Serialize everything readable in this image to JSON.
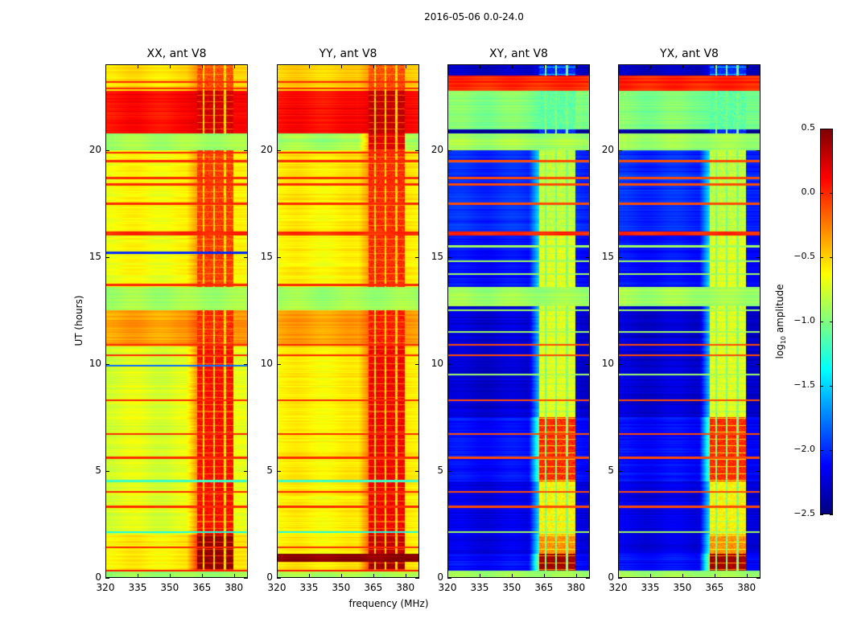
{
  "chart_data": {
    "type": "heatmap",
    "title": "2016-05-06 0.0-24.0",
    "xlabel": "frequency (MHz)",
    "ylabel": "UT (hours)",
    "xlim": [
      320,
      386.5
    ],
    "ylim": [
      0,
      24
    ],
    "xticks": [
      "320",
      "335",
      "350",
      "365",
      "380"
    ],
    "yticks": [
      "0",
      "5",
      "10",
      "15",
      "20"
    ],
    "colorbar": {
      "label": "log10 amplitude",
      "label_main": "log",
      "label_sub": "10",
      "label_rest": " amplitude",
      "range": [
        -2.5,
        0.5
      ],
      "ticks": [
        "0.5",
        "0.0",
        "−0.5",
        "−1.0",
        "−1.5",
        "−2.0",
        "−2.5"
      ],
      "colormap": "jet"
    },
    "rfi_range": [
      363,
      380
    ],
    "rfi_gaps": [
      366,
      371,
      376
    ],
    "panels": [
      {
        "title": "XX, ant V8",
        "gap": -0.5,
        "bands": [
          [
            0,
            0.3,
            -0.9,
            -0.9
          ],
          [
            0.3,
            2.0,
            -0.6,
            0.45
          ],
          [
            2.0,
            10.8,
            -0.72,
            0.1
          ],
          [
            10.8,
            12.5,
            -0.35,
            0.0
          ],
          [
            12.5,
            13.6,
            -0.9,
            -0.9
          ],
          [
            13.6,
            16.0,
            -0.65,
            -0.05
          ],
          [
            16.0,
            16.2,
            0.0,
            0.0
          ],
          [
            16.2,
            20.0,
            -0.62,
            -0.05
          ],
          [
            20.0,
            20.8,
            -0.9,
            -0.9
          ],
          [
            20.8,
            22.8,
            0.1,
            0.25
          ],
          [
            22.8,
            24,
            -0.55,
            -0.1
          ]
        ],
        "lines": [
          [
            0.3,
            0.05
          ],
          [
            1.4,
            0.0
          ],
          [
            2.1,
            -1.3
          ],
          [
            3.3,
            0.0
          ],
          [
            4.0,
            0.0
          ],
          [
            4.5,
            -1.2
          ],
          [
            5.6,
            0.0
          ],
          [
            6.7,
            0.0
          ],
          [
            8.3,
            0.0
          ],
          [
            9.9,
            -1.8
          ],
          [
            10.4,
            0.0
          ],
          [
            10.9,
            0.0
          ],
          [
            13.7,
            0.0
          ],
          [
            15.2,
            -2.0
          ],
          [
            17.5,
            0.0
          ],
          [
            18.4,
            0.0
          ],
          [
            18.7,
            0.0
          ],
          [
            19.5,
            0.0
          ],
          [
            19.9,
            0.0
          ],
          [
            22.9,
            0.0
          ],
          [
            23.2,
            0.0
          ]
        ]
      },
      {
        "title": "YY, ant V8",
        "gap": -0.5,
        "bands": [
          [
            0,
            0.3,
            -0.9,
            -0.9
          ],
          [
            0.3,
            0.7,
            -0.55,
            0.4
          ],
          [
            0.7,
            1.1,
            0.45,
            0.45
          ],
          [
            1.1,
            2.0,
            -0.6,
            0.3
          ],
          [
            2.0,
            10.8,
            -0.6,
            0.15
          ],
          [
            10.8,
            12.5,
            -0.35,
            0.05
          ],
          [
            12.5,
            13.6,
            -0.9,
            -0.9
          ],
          [
            13.6,
            16.0,
            -0.6,
            0.0
          ],
          [
            16.0,
            16.2,
            0.0,
            0.0
          ],
          [
            16.2,
            20.0,
            -0.58,
            0.0
          ],
          [
            20.0,
            20.8,
            -0.9,
            0.2
          ],
          [
            20.8,
            22.8,
            0.1,
            0.3
          ],
          [
            22.8,
            24,
            -0.5,
            -0.1
          ]
        ],
        "lines": [
          [
            0.3,
            0.05
          ],
          [
            1.4,
            0.0
          ],
          [
            2.1,
            -1.3
          ],
          [
            3.3,
            0.0
          ],
          [
            4.0,
            0.0
          ],
          [
            4.5,
            -1.2
          ],
          [
            5.6,
            0.0
          ],
          [
            6.7,
            0.0
          ],
          [
            8.3,
            0.0
          ],
          [
            10.4,
            0.0
          ],
          [
            10.9,
            0.0
          ],
          [
            13.7,
            0.0
          ],
          [
            17.5,
            0.0
          ],
          [
            18.4,
            0.0
          ],
          [
            18.7,
            0.0
          ],
          [
            19.5,
            0.0
          ],
          [
            19.9,
            0.0
          ],
          [
            22.9,
            0.0
          ],
          [
            23.2,
            0.0
          ]
        ]
      },
      {
        "title": "XY, ant V8",
        "gap": -1.0,
        "bands": [
          [
            0,
            0.3,
            -0.9,
            -0.9
          ],
          [
            0.3,
            1.1,
            -2.1,
            0.4
          ],
          [
            1.1,
            2.0,
            -2.2,
            -0.3
          ],
          [
            2.0,
            4.5,
            -2.2,
            -0.6
          ],
          [
            4.5,
            7.5,
            -2.1,
            0.0
          ],
          [
            7.5,
            12.7,
            -2.25,
            -0.7
          ],
          [
            12.7,
            13.6,
            -0.9,
            -0.9
          ],
          [
            13.6,
            16.0,
            -2.1,
            -0.7
          ],
          [
            16.0,
            16.2,
            0.0,
            0.0
          ],
          [
            16.2,
            20.0,
            -2.0,
            -0.8
          ],
          [
            20.0,
            20.3,
            -0.9,
            -0.9
          ],
          [
            20.3,
            20.8,
            -0.9,
            -0.9
          ],
          [
            20.8,
            21.0,
            -2.4,
            -2.0
          ],
          [
            21.0,
            22.8,
            -1.0,
            -1.1
          ],
          [
            22.8,
            23.5,
            0.0,
            0.0
          ],
          [
            23.5,
            24,
            -2.3,
            -2.0
          ]
        ],
        "lines": [
          [
            2.1,
            -0.9
          ],
          [
            3.3,
            -0.1
          ],
          [
            4.0,
            -0.1
          ],
          [
            5.6,
            -0.1
          ],
          [
            6.7,
            -0.1
          ],
          [
            8.3,
            -0.1
          ],
          [
            9.5,
            -0.9
          ],
          [
            10.4,
            -0.1
          ],
          [
            10.9,
            -0.1
          ],
          [
            11.5,
            -0.9
          ],
          [
            12.5,
            -0.9
          ],
          [
            14.2,
            -0.9
          ],
          [
            14.8,
            -0.9
          ],
          [
            15.5,
            -0.9
          ],
          [
            17.5,
            -0.1
          ],
          [
            18.4,
            -0.1
          ],
          [
            18.7,
            -0.1
          ],
          [
            19.5,
            -0.1
          ],
          [
            23.2,
            0.1
          ]
        ]
      },
      {
        "title": "YX, ant V8",
        "gap": -1.0,
        "bands": [
          [
            0,
            0.3,
            -0.9,
            -0.9
          ],
          [
            0.3,
            1.1,
            -2.1,
            0.4
          ],
          [
            1.1,
            2.0,
            -2.2,
            -0.3
          ],
          [
            2.0,
            4.5,
            -2.2,
            -0.6
          ],
          [
            4.5,
            7.5,
            -2.1,
            0.0
          ],
          [
            7.5,
            12.7,
            -2.25,
            -0.7
          ],
          [
            12.7,
            13.6,
            -0.9,
            -0.9
          ],
          [
            13.6,
            16.0,
            -2.1,
            -0.7
          ],
          [
            16.0,
            16.2,
            0.0,
            0.0
          ],
          [
            16.2,
            20.0,
            -2.0,
            -0.8
          ],
          [
            20.0,
            20.3,
            -0.9,
            -0.9
          ],
          [
            20.3,
            20.8,
            -0.9,
            -0.9
          ],
          [
            20.8,
            21.0,
            -2.4,
            -2.0
          ],
          [
            21.0,
            22.8,
            -1.0,
            -1.1
          ],
          [
            22.8,
            23.5,
            0.0,
            0.0
          ],
          [
            23.5,
            24,
            -2.3,
            -2.0
          ]
        ],
        "lines": [
          [
            2.1,
            -0.9
          ],
          [
            3.3,
            -0.1
          ],
          [
            4.0,
            -0.1
          ],
          [
            5.6,
            -0.1
          ],
          [
            6.7,
            -0.1
          ],
          [
            8.3,
            -0.1
          ],
          [
            9.5,
            -0.9
          ],
          [
            10.4,
            -0.1
          ],
          [
            10.9,
            -0.1
          ],
          [
            11.5,
            -0.9
          ],
          [
            12.5,
            -0.9
          ],
          [
            14.2,
            -0.9
          ],
          [
            14.8,
            -0.9
          ],
          [
            15.5,
            -0.9
          ],
          [
            17.5,
            -0.1
          ],
          [
            18.4,
            -0.1
          ],
          [
            18.7,
            -0.1
          ],
          [
            19.5,
            -0.1
          ],
          [
            23.2,
            0.1
          ]
        ]
      }
    ]
  }
}
